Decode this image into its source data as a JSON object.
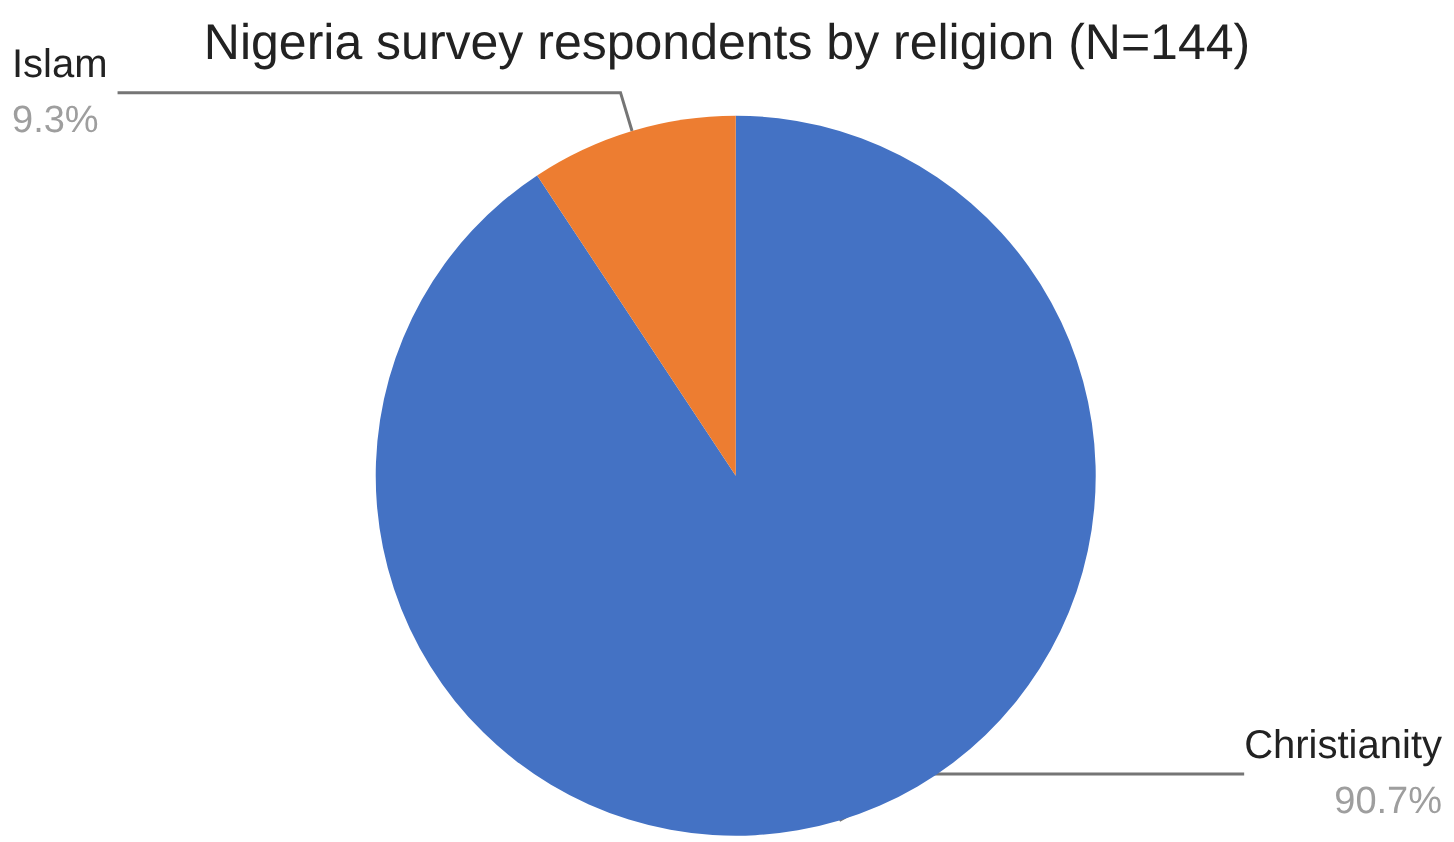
{
  "chart_data": {
    "type": "pie",
    "title": "Nigeria survey respondents by religion (N=144)",
    "categories": [
      "Christianity",
      "Islam"
    ],
    "values": [
      90.7,
      9.3
    ],
    "colors": [
      "#4472c4",
      "#ed7d31"
    ],
    "value_labels": [
      "90.7%",
      "9.3%"
    ],
    "legend": false
  }
}
